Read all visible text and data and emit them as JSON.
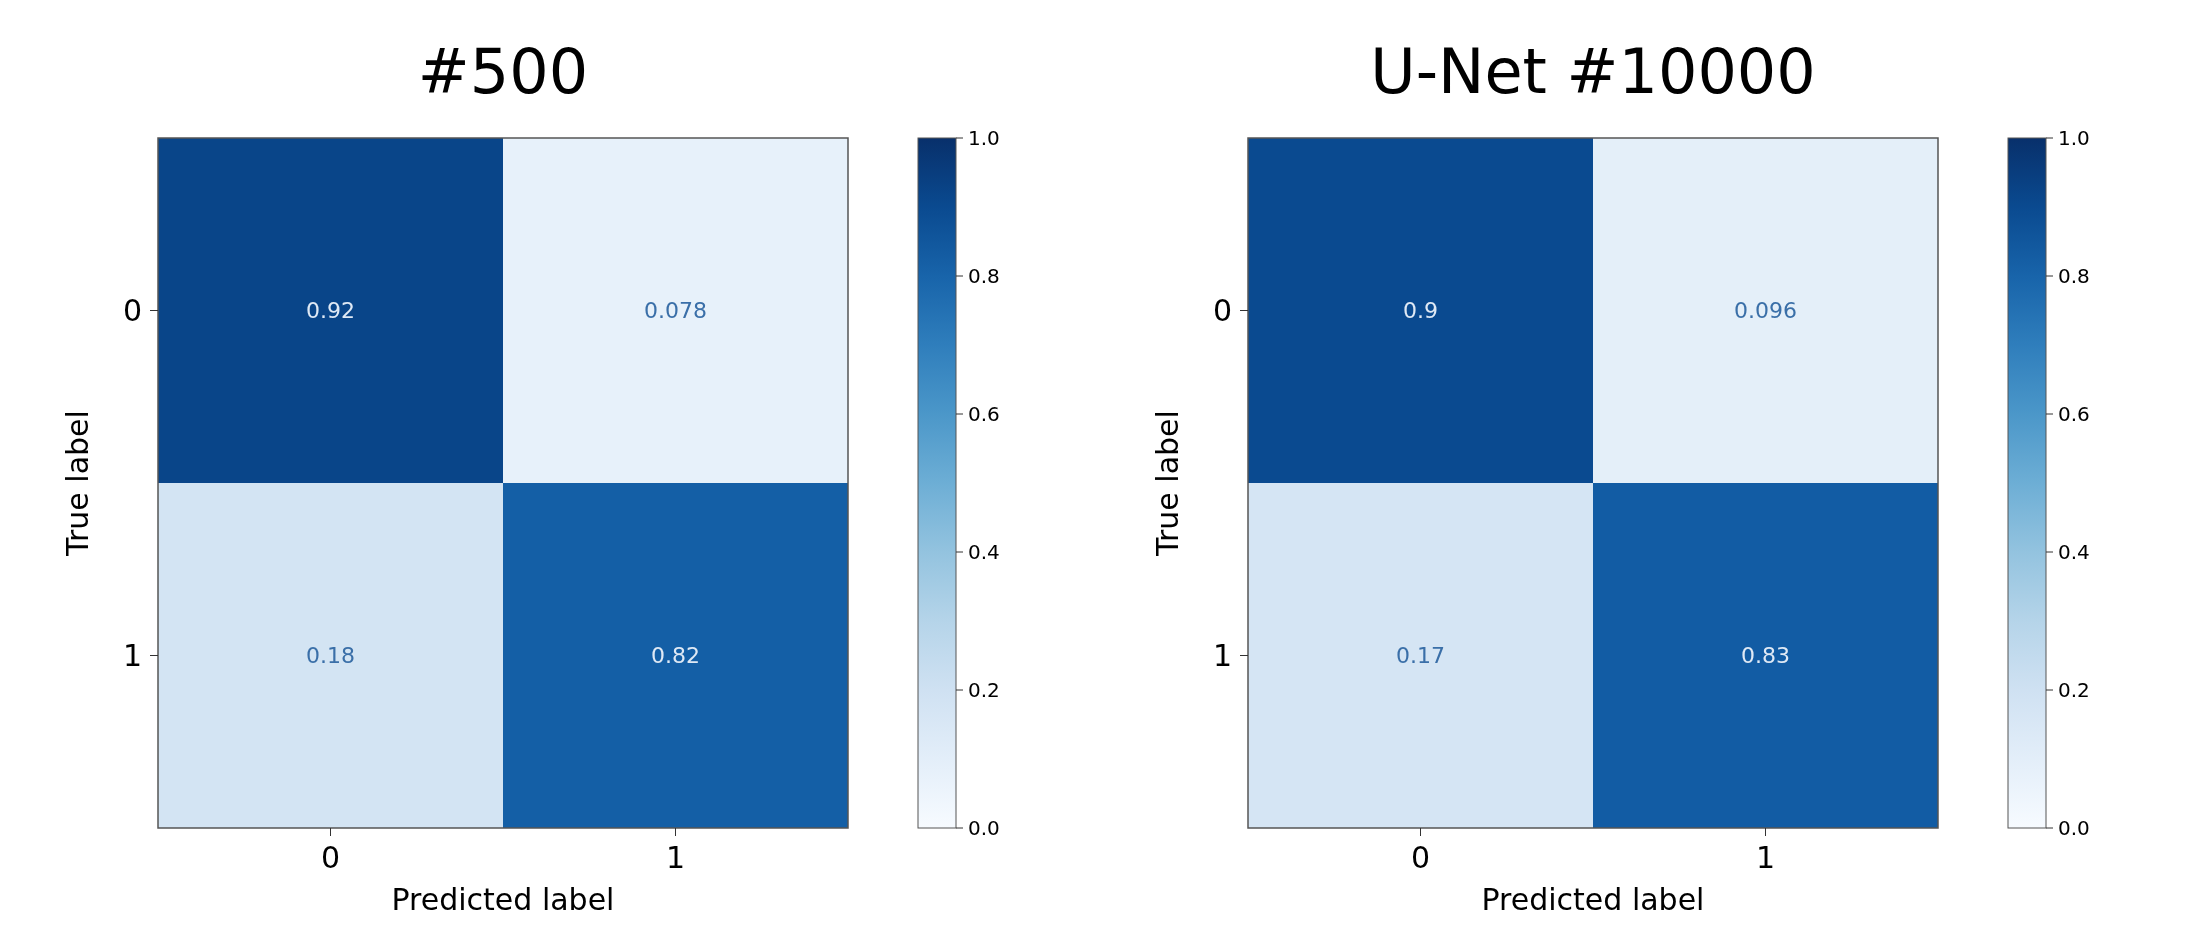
{
  "chart_data": [
    {
      "type": "heatmap",
      "title": "#500",
      "xlabel": "Predicted label",
      "ylabel": "True label",
      "categories": [
        "0",
        "1"
      ],
      "y_categories": [
        "0",
        "1"
      ],
      "cells": [
        [
          0.92,
          0.078
        ],
        [
          0.18,
          0.82
        ]
      ],
      "data_labels": true,
      "clim": [
        0,
        1
      ],
      "cticks": [
        {
          "value": 0,
          "label": "0.0"
        },
        {
          "value": 0.2,
          "label": "0.2"
        },
        {
          "value": 0.4,
          "label": "0.4"
        },
        {
          "value": 0.6,
          "label": "0.6"
        },
        {
          "value": 0.8,
          "label": "0.8"
        },
        {
          "value": 1,
          "label": "1.0"
        }
      ]
    },
    {
      "type": "heatmap",
      "title": "U-Net #10000",
      "xlabel": "Predicted label",
      "ylabel": "True label",
      "categories": [
        "0",
        "1"
      ],
      "y_categories": [
        "0",
        "1"
      ],
      "cells": [
        [
          0.9,
          0.096
        ],
        [
          0.17,
          0.83
        ]
      ],
      "data_labels": true,
      "clim": [
        0,
        1
      ],
      "cticks": [
        {
          "value": 0,
          "label": "0.0"
        },
        {
          "value": 0.2,
          "label": "0.2"
        },
        {
          "value": 0.4,
          "label": "0.4"
        },
        {
          "value": 0.6,
          "label": "0.6"
        },
        {
          "value": 0.8,
          "label": "0.8"
        },
        {
          "value": 1,
          "label": "1.0"
        }
      ]
    }
  ]
}
